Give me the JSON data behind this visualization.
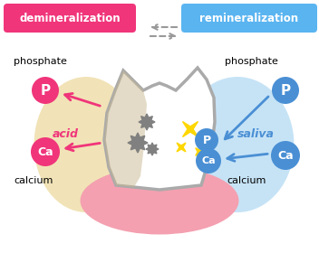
{
  "bg_color": "#ffffff",
  "title_left": "demineralization",
  "title_right": "remineralization",
  "title_left_color": "#ffffff",
  "title_right_color": "#ffffff",
  "title_left_bg": "#f0357a",
  "title_right_bg": "#5ab4f0",
  "phosphate_label": "phosphate",
  "calcium_label": "calcium",
  "acid_label": "acid",
  "saliva_label": "saliva",
  "left_circle_color": "#f0357a",
  "right_circle_color": "#4a8fd4",
  "tooth_outline_color": "#aaaaaa",
  "tooth_fill": "#ffffff",
  "gum_color": "#f4a0b0",
  "left_bg_color": "#f0e0b0",
  "right_bg_color": "#c0e0f5",
  "left_inner_color": "#c8b890",
  "dark_spot_color": "#808080",
  "sparkle_color": "#ffd700",
  "arrow_left_color": "#f0357a",
  "arrow_right_color": "#4a8fd4",
  "gray_arrow_color": "#999999"
}
